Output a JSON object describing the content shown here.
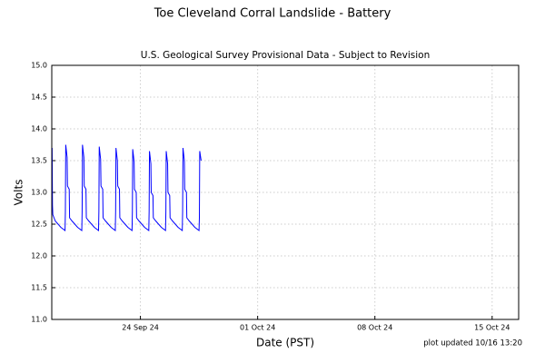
{
  "chart_data": {
    "type": "line",
    "title": "Toe Cleveland Corral Landslide - Battery",
    "subtitle": "U.S. Geological Survey Provisional Data - Subject to Revision",
    "x_label": "Date (PST)",
    "y_label": "Volts",
    "note": "plot updated 10/16 13:20",
    "grid": true,
    "xlim": [
      "2024-09-18T17:00",
      "2024-10-16T14:00"
    ],
    "xticks": [
      {
        "value": "2024-09-24T00:00",
        "label": "24 Sep 24"
      },
      {
        "value": "2024-10-01T00:00",
        "label": "01 Oct 24"
      },
      {
        "value": "2024-10-08T00:00",
        "label": "08 Oct 24"
      },
      {
        "value": "2024-10-15T00:00",
        "label": "15 Oct 24"
      }
    ],
    "ylim": [
      11.0,
      15.0
    ],
    "yticks": [
      {
        "value": 11.0,
        "label": "11.0"
      },
      {
        "value": 11.5,
        "label": "11.5"
      },
      {
        "value": 12.0,
        "label": "12.0"
      },
      {
        "value": 12.5,
        "label": "12.5"
      },
      {
        "value": 13.0,
        "label": "13.0"
      },
      {
        "value": 13.5,
        "label": "13.5"
      },
      {
        "value": 14.0,
        "label": "14.0"
      },
      {
        "value": 14.5,
        "label": "14.5"
      },
      {
        "value": 15.0,
        "label": "15.0"
      }
    ],
    "x": [
      "2024-09-18T17:30",
      "2024-09-18T18:00",
      "2024-09-18T18:30",
      "2024-09-18T22:00",
      "2024-09-19T06:00",
      "2024-09-19T12:00",
      "2024-09-19T12:30",
      "2024-09-19T13:00",
      "2024-09-19T15:00",
      "2024-09-19T15:30",
      "2024-09-19T18:00",
      "2024-09-19T18:30",
      "2024-09-19T22:00",
      "2024-09-20T06:00",
      "2024-09-20T12:00",
      "2024-09-20T12:30",
      "2024-09-20T13:00",
      "2024-09-20T15:00",
      "2024-09-20T15:30",
      "2024-09-20T18:00",
      "2024-09-20T18:30",
      "2024-09-20T22:00",
      "2024-09-21T06:00",
      "2024-09-21T12:00",
      "2024-09-21T12:30",
      "2024-09-21T13:00",
      "2024-09-21T15:00",
      "2024-09-21T15:30",
      "2024-09-21T18:00",
      "2024-09-21T18:30",
      "2024-09-21T22:00",
      "2024-09-22T06:00",
      "2024-09-22T12:00",
      "2024-09-22T12:30",
      "2024-09-22T13:00",
      "2024-09-22T15:00",
      "2024-09-22T15:30",
      "2024-09-22T18:00",
      "2024-09-22T18:30",
      "2024-09-22T22:00",
      "2024-09-23T06:00",
      "2024-09-23T12:00",
      "2024-09-23T12:30",
      "2024-09-23T13:00",
      "2024-09-23T15:00",
      "2024-09-23T15:30",
      "2024-09-23T18:00",
      "2024-09-23T18:30",
      "2024-09-23T22:00",
      "2024-09-24T06:00",
      "2024-09-24T12:00",
      "2024-09-24T12:30",
      "2024-09-24T13:00",
      "2024-09-24T15:00",
      "2024-09-24T15:30",
      "2024-09-24T18:00",
      "2024-09-24T18:30",
      "2024-09-24T22:00",
      "2024-09-25T06:00",
      "2024-09-25T12:00",
      "2024-09-25T12:30",
      "2024-09-25T13:00",
      "2024-09-25T15:00",
      "2024-09-25T15:30",
      "2024-09-25T18:00",
      "2024-09-25T18:30",
      "2024-09-25T22:00",
      "2024-09-26T06:00",
      "2024-09-26T12:00",
      "2024-09-26T12:30",
      "2024-09-26T13:00",
      "2024-09-26T15:00",
      "2024-09-26T15:30",
      "2024-09-26T18:00",
      "2024-09-26T18:30",
      "2024-09-26T22:00",
      "2024-09-27T06:00",
      "2024-09-27T12:00",
      "2024-09-27T12:30",
      "2024-09-27T13:00",
      "2024-09-27T15:00"
    ],
    "series": [
      {
        "color": "#0000ff",
        "values": [
          13.7,
          12.8,
          12.65,
          12.55,
          12.45,
          12.4,
          12.7,
          13.75,
          13.55,
          13.1,
          13.05,
          12.6,
          12.55,
          12.45,
          12.4,
          12.7,
          13.75,
          13.55,
          13.1,
          13.05,
          12.6,
          12.55,
          12.45,
          12.4,
          12.7,
          13.72,
          13.52,
          13.1,
          13.05,
          12.6,
          12.55,
          12.45,
          12.4,
          12.7,
          13.7,
          13.5,
          13.1,
          13.05,
          12.6,
          12.55,
          12.45,
          12.4,
          12.7,
          13.68,
          13.48,
          13.05,
          13.0,
          12.6,
          12.55,
          12.45,
          12.4,
          12.7,
          13.65,
          13.45,
          13.0,
          12.95,
          12.6,
          12.55,
          12.45,
          12.4,
          12.7,
          13.65,
          13.45,
          13.0,
          12.95,
          12.6,
          12.55,
          12.45,
          12.4,
          12.7,
          13.7,
          13.5,
          13.05,
          13.0,
          12.6,
          12.55,
          12.45,
          12.4,
          12.6,
          13.65,
          13.5
        ]
      }
    ]
  }
}
